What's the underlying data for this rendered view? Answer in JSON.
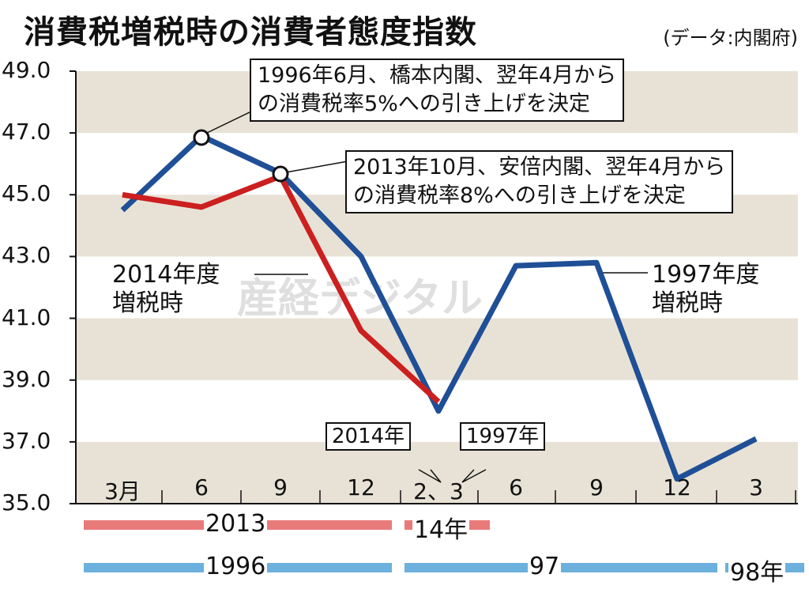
{
  "title": "消費税増税時の消費者態度指数",
  "source": "(データ:内閣府)",
  "colors": {
    "blue": "#1f4f96",
    "red": "#cc1f1f",
    "band": "#e8e2d6",
    "red_bar": "#e97a7a",
    "blue_bar": "#6cb0de"
  },
  "annotations": {
    "a1996": [
      "1996年6月、橋本内閣、翌年4月から",
      "の消費税率5%への引き上げを決定"
    ],
    "a2013": [
      "2013年10月、安倍内閣、翌年4月から",
      "の消費税率8%への引き上げを決定"
    ],
    "label2014": [
      "2014年度",
      "増税時"
    ],
    "label1997": [
      "1997年度",
      "増税時"
    ],
    "hike2014": "2014年",
    "hike1997": "1997年",
    "watermark": "産経デジタル"
  },
  "year_rows": {
    "red": [
      "2013",
      "14年"
    ],
    "blue": [
      "1996",
      "97",
      "98年"
    ]
  },
  "chart_data": {
    "type": "line",
    "title": "消費税増税時の消費者態度指数",
    "source": "(データ:内閣府)",
    "categories": [
      "3月",
      "6",
      "9",
      "12",
      "2、3",
      "6",
      "9",
      "12",
      "3"
    ],
    "yticks": [
      "49.0",
      "47.0",
      "45.0",
      "43.0",
      "41.0",
      "39.0",
      "37.0",
      "35.0"
    ],
    "ylim": [
      35.0,
      49.0
    ],
    "grid": "alternating horizontal bands",
    "series": [
      {
        "name": "1996-98年 (1997年度増税時)",
        "color": "#1f4f96",
        "values": [
          44.5,
          46.9,
          45.7,
          43.0,
          38.0,
          42.7,
          42.8,
          35.8,
          37.1
        ]
      },
      {
        "name": "2013-14年 (2014年度増税時)",
        "color": "#cc1f1f",
        "values": [
          45.0,
          44.6,
          45.6,
          40.6,
          38.3,
          null,
          null,
          null,
          null
        ]
      }
    ],
    "xlabel": "",
    "ylabel": ""
  }
}
